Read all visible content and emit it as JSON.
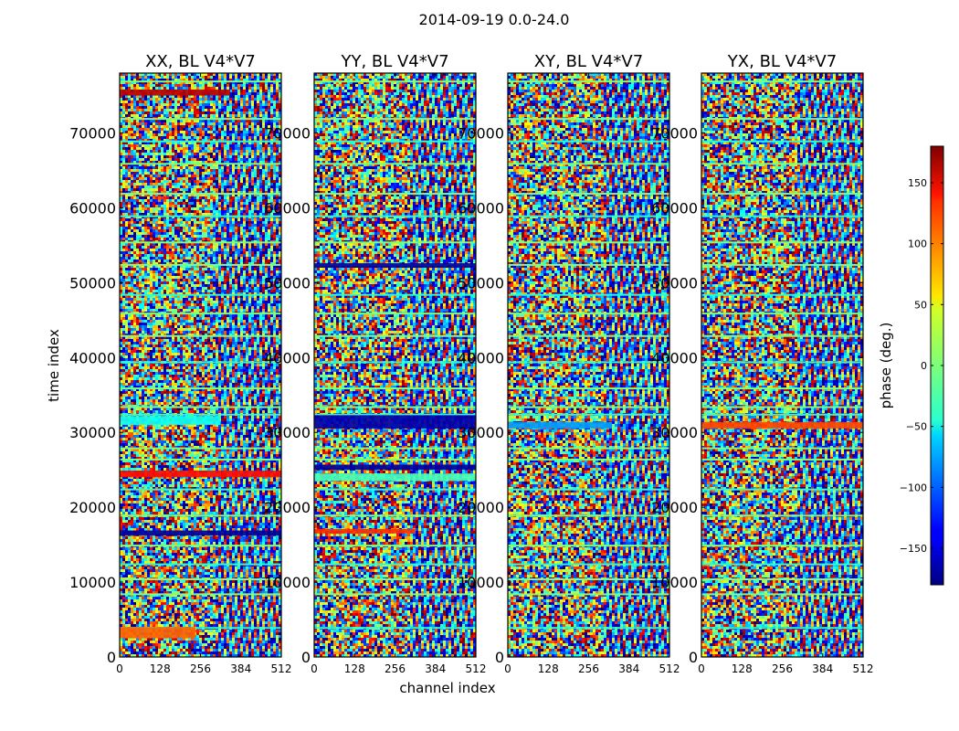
{
  "chart_data": {
    "type": "heatmap",
    "suptitle": "2014-09-19 0.0-24.0",
    "xlabel": "channel index",
    "ylabel": "time index",
    "xlim": [
      0,
      512
    ],
    "ylim": [
      0,
      78000
    ],
    "x_ticks": [
      0,
      128,
      256,
      384,
      512
    ],
    "y_ticks": [
      0,
      10000,
      20000,
      30000,
      40000,
      50000,
      60000,
      70000
    ],
    "panels": [
      {
        "title": "XX, BL V4*V7",
        "value_range": [
          -180,
          180
        ]
      },
      {
        "title": "YY, BL V4*V7",
        "value_range": [
          -180,
          180
        ]
      },
      {
        "title": "XY, BL V4*V7",
        "value_range": [
          -180,
          180
        ]
      },
      {
        "title": "YX, BL V4*V7",
        "value_range": [
          -180,
          180
        ]
      }
    ],
    "colorbar": {
      "label": "phase (deg.)",
      "range": [
        -180,
        180
      ],
      "ticks": [
        -150,
        -100,
        -50,
        0,
        50,
        100,
        150
      ],
      "colormap": "jet"
    }
  }
}
